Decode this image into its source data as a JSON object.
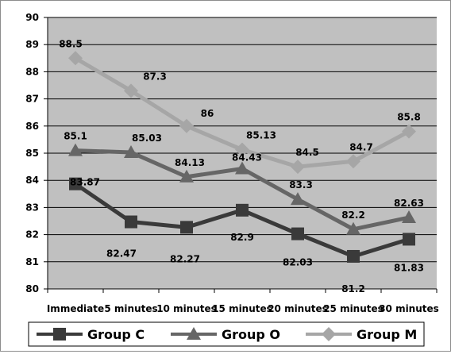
{
  "chart_data": {
    "type": "line",
    "title": "",
    "xlabel": "",
    "ylabel": "",
    "categories": [
      "Immediate",
      "5 minutes",
      "10 minutes",
      "15 minutes",
      "20 minutes",
      "25 minutes",
      "30 minutes"
    ],
    "ylim": [
      80,
      90
    ],
    "y_ticks": [
      80,
      81,
      82,
      83,
      84,
      85,
      86,
      87,
      88,
      89,
      90
    ],
    "grid": "horizontal",
    "legend_position": "bottom",
    "plot_background": "#c0c0c0",
    "series": [
      {
        "name": "Group C",
        "marker": "square",
        "color": "#3a3a3a",
        "values": [
          83.87,
          82.47,
          82.27,
          82.9,
          82.03,
          81.2,
          81.83
        ],
        "labels": [
          "83.87",
          "82.47",
          "82.27",
          "82.9",
          "82.03",
          "81.2",
          "81.83"
        ]
      },
      {
        "name": "Group O",
        "marker": "triangle",
        "color": "#666666",
        "values": [
          85.1,
          85.03,
          84.13,
          84.43,
          83.3,
          82.2,
          82.63
        ],
        "labels": [
          "85.1",
          "85.03",
          "84.13",
          "84.43",
          "83.3",
          "82.2",
          "82.63"
        ]
      },
      {
        "name": "Group M",
        "marker": "diamond",
        "color": "#a6a6a6",
        "values": [
          88.5,
          87.3,
          86,
          85.13,
          84.5,
          84.7,
          85.8
        ],
        "labels": [
          "88.5",
          "87.3",
          "86",
          "85.13",
          "84.5",
          "84.7",
          "85.8"
        ]
      }
    ]
  }
}
